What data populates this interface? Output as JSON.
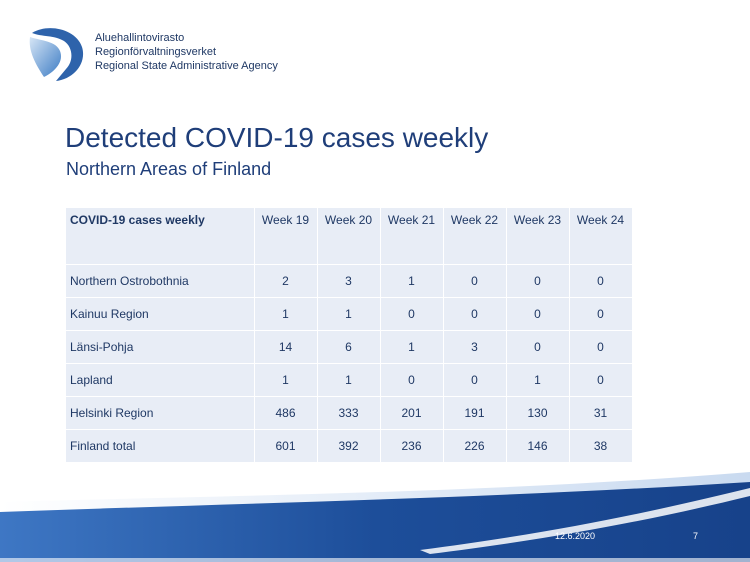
{
  "agency": {
    "lines": [
      "Aluehallintovirasto",
      "Regionförvaltningsverket",
      "Regional State Administrative Agency"
    ]
  },
  "slide": {
    "title": "Detected COVID-19 cases weekly",
    "subtitle": "Northern Areas of Finland"
  },
  "table": {
    "header": "COVID-19 cases weekly",
    "weeks": [
      "Week 19",
      "Week 20",
      "Week 21",
      "Week 22",
      "Week 23",
      "Week 24"
    ],
    "rows": [
      {
        "region": "Northern Ostrobothnia",
        "values": [
          "2",
          "3",
          "1",
          "0",
          "0",
          "0"
        ]
      },
      {
        "region": "Kainuu Region",
        "values": [
          "1",
          "1",
          "0",
          "0",
          "0",
          "0"
        ]
      },
      {
        "region": "Länsi-Pohja",
        "values": [
          "14",
          "6",
          "1",
          "3",
          "0",
          "0"
        ]
      },
      {
        "region": "Lapland",
        "values": [
          "1",
          "1",
          "0",
          "0",
          "1",
          "0"
        ]
      },
      {
        "region": "Helsinki Region",
        "values": [
          "486",
          "333",
          "201",
          "191",
          "130",
          "31"
        ]
      },
      {
        "region": "Finland total",
        "values": [
          "601",
          "392",
          "236",
          "226",
          "146",
          "38"
        ]
      }
    ]
  },
  "footer": {
    "date": "12.6.2020",
    "page_number": "7"
  },
  "colors": {
    "brand_blue": "#1f3e79",
    "table_fill": "#e8edf6",
    "band_blue": "#1d4e9a"
  }
}
